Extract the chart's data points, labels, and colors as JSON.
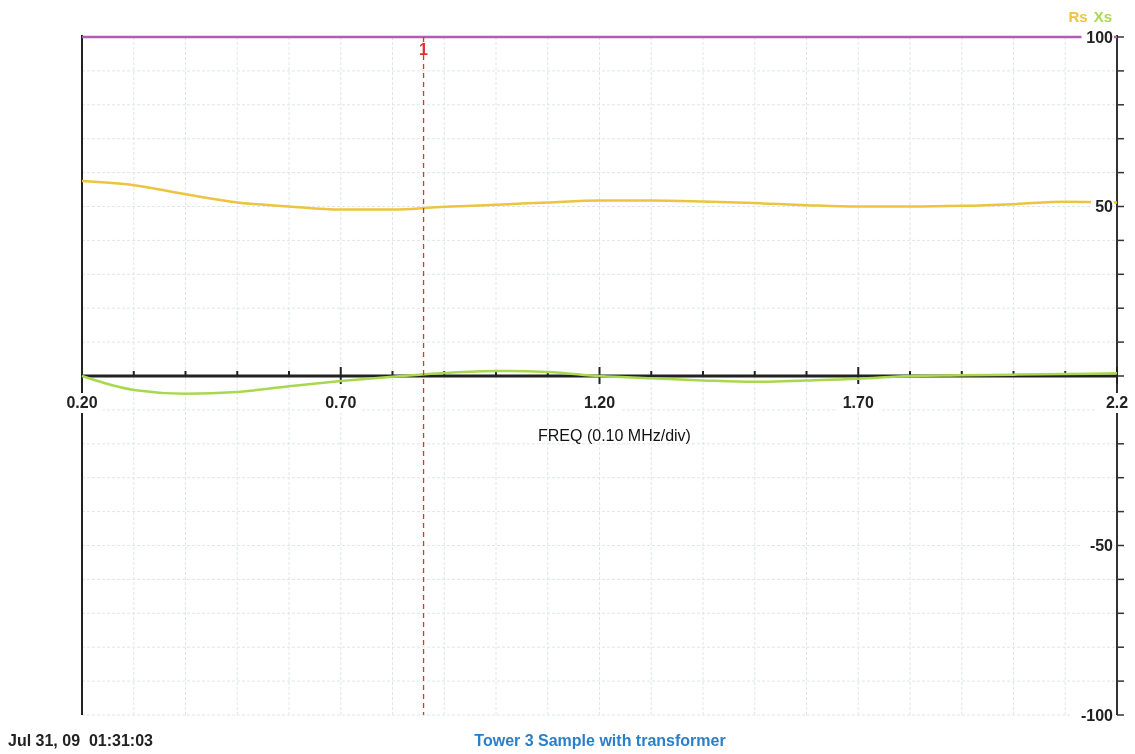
{
  "chart_data": {
    "type": "line",
    "xlabel": "FREQ (0.10 MHz/div)",
    "annotations": [
      "Jul 31, 09  01:31:03",
      "Tower 3 Sample with transformer"
    ],
    "xlim": [
      0.2,
      2.2
    ],
    "xticks": [
      {
        "value": 0.2,
        "label": "0.20"
      },
      {
        "value": 0.3,
        "label": null
      },
      {
        "value": 0.4,
        "label": null
      },
      {
        "value": 0.5,
        "label": null
      },
      {
        "value": 0.6,
        "label": null
      },
      {
        "value": 0.7,
        "label": "0.70"
      },
      {
        "value": 0.8,
        "label": null
      },
      {
        "value": 0.9,
        "label": null
      },
      {
        "value": 1.0,
        "label": null
      },
      {
        "value": 1.1,
        "label": null
      },
      {
        "value": 1.2,
        "label": "1.20"
      },
      {
        "value": 1.3,
        "label": null
      },
      {
        "value": 1.4,
        "label": null
      },
      {
        "value": 1.5,
        "label": null
      },
      {
        "value": 1.6,
        "label": null
      },
      {
        "value": 1.7,
        "label": "1.70"
      },
      {
        "value": 1.8,
        "label": null
      },
      {
        "value": 1.9,
        "label": null
      },
      {
        "value": 2.0,
        "label": null
      },
      {
        "value": 2.1,
        "label": null
      },
      {
        "value": 2.2,
        "label": "2.2"
      }
    ],
    "ylim": [
      -100,
      100
    ],
    "yticks": [
      -100,
      {
        "value": -90,
        "label": null
      },
      {
        "value": -80,
        "label": null
      },
      {
        "value": -70,
        "label": null
      },
      {
        "value": -60,
        "label": null
      },
      -50,
      {
        "value": -40,
        "label": null
      },
      {
        "value": -30,
        "label": null
      },
      {
        "value": -20,
        "label": null
      },
      {
        "value": -10,
        "label": null
      },
      {
        "value": 0,
        "label": null
      },
      {
        "value": 10,
        "label": null
      },
      {
        "value": 20,
        "label": null
      },
      {
        "value": 30,
        "label": null
      },
      {
        "value": 40,
        "label": null
      },
      50,
      {
        "value": 60,
        "label": null
      },
      {
        "value": 70,
        "label": null
      },
      {
        "value": 80,
        "label": null
      },
      {
        "value": 90,
        "label": null
      },
      100
    ],
    "grid": true,
    "legend": "top right",
    "marker": "none",
    "line_style": "solid",
    "ref_lines": [
      {
        "axis": "x",
        "value": 0.86,
        "label": "1",
        "color": "#e03030",
        "line_style": "dashed"
      }
    ],
    "x": [
      0.2,
      0.3,
      0.4,
      0.5,
      0.6,
      0.7,
      0.8,
      0.9,
      1.0,
      1.1,
      1.2,
      1.3,
      1.4,
      1.5,
      1.6,
      1.7,
      1.8,
      1.9,
      2.0,
      2.1,
      2.2
    ],
    "series": [
      {
        "color": "#b05cb0",
        "values": [
          100,
          100,
          100,
          100,
          100,
          100,
          100,
          100,
          100,
          100,
          100,
          100,
          100,
          100,
          100,
          100,
          100,
          100,
          100,
          100,
          100
        ]
      },
      {
        "name": "Rs",
        "color": "#ecc440",
        "values": [
          57.5,
          56.3,
          53.6,
          51.2,
          50,
          49.1,
          49.1,
          49.9,
          50.5,
          51.2,
          51.8,
          51.8,
          51.5,
          51,
          50.4,
          50,
          50,
          50.2,
          50.7,
          51.4,
          51.2
        ]
      },
      {
        "name": "Xs",
        "color": "#a8d850",
        "values": [
          0,
          -4.1,
          -5.2,
          -4.7,
          -3,
          -1.5,
          -0.2,
          0.9,
          1.5,
          1.2,
          0,
          -0.7,
          -1.3,
          -1.7,
          -1.3,
          -0.8,
          0,
          0.2,
          0.4,
          0.6,
          0.8
        ]
      }
    ]
  }
}
